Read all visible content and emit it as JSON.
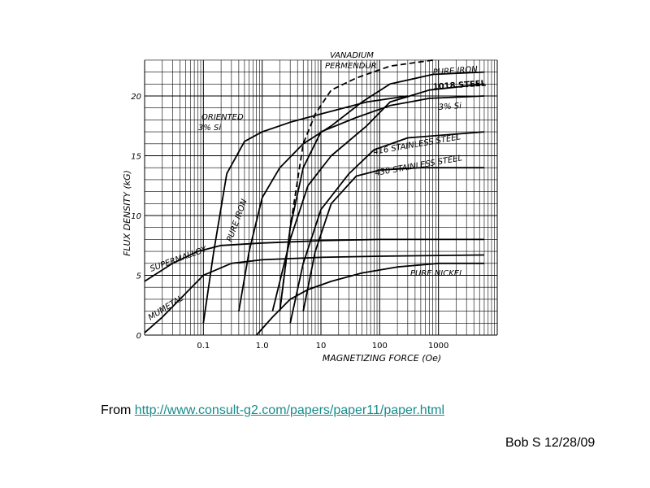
{
  "chart_data": {
    "type": "line",
    "title": "",
    "xlabel": "MAGNETIZING FORCE (Oe)",
    "ylabel": "FLUX DENSITY (kG)",
    "x_scale": "log",
    "xlim": [
      0.01,
      10000
    ],
    "ylim": [
      0,
      22
    ],
    "x_tick_labels": [
      "0.1",
      "1.0",
      "10",
      "100",
      "1000"
    ],
    "x_ticks": [
      0.1,
      1,
      10,
      100,
      1000
    ],
    "y_tick_labels": [
      "0",
      "5",
      "10",
      "15",
      "20"
    ],
    "y_ticks": [
      0,
      5,
      10,
      15,
      20
    ],
    "grid": true,
    "series": [
      {
        "name": "VANADIUM PERMENDUR",
        "dash": true,
        "x": [
          2.0,
          3.0,
          5.0,
          8.0,
          15.0,
          40.0,
          150.0,
          800.0
        ],
        "y": [
          2.0,
          9.0,
          16.0,
          18.5,
          20.5,
          21.5,
          22.5,
          23.0
        ]
      },
      {
        "name": "PURE IRON",
        "x": [
          0.4,
          0.6,
          1.0,
          2.0,
          5.0,
          15.0,
          50.0,
          150.0,
          800.0,
          6000.0
        ],
        "y": [
          2.0,
          7.0,
          11.5,
          14.0,
          16.0,
          17.5,
          19.5,
          21.0,
          21.8,
          22.0
        ]
      },
      {
        "name": "1018 STEEL",
        "x": [
          1.5,
          3.0,
          6.0,
          15.0,
          60.0,
          150.0,
          700.0,
          6000.0
        ],
        "y": [
          2.0,
          8.0,
          12.5,
          15.0,
          17.5,
          19.5,
          20.5,
          21.0
        ]
      },
      {
        "name": "3% Si",
        "x": [
          2.0,
          3.0,
          5.0,
          10.0,
          40.0,
          150.0,
          700.0,
          6000.0
        ],
        "y": [
          2.0,
          9.0,
          14.0,
          17.0,
          18.2,
          19.2,
          19.8,
          20.0
        ]
      },
      {
        "name": "ORIENTED 3% Si",
        "x": [
          0.1,
          0.15,
          0.25,
          0.5,
          1.0,
          3.0,
          10.0,
          60.0,
          300.0
        ],
        "y": [
          1.0,
          7.0,
          13.5,
          16.2,
          17.0,
          17.8,
          18.5,
          19.5,
          20.0
        ]
      },
      {
        "name": "416 STAINLESS STEEL",
        "x": [
          3.0,
          5.0,
          10.0,
          30.0,
          80.0,
          300.0,
          6000.0
        ],
        "y": [
          1.0,
          6.0,
          10.5,
          13.5,
          15.5,
          16.5,
          17.0
        ]
      },
      {
        "name": "430 STAINLESS STEEL",
        "x": [
          5.0,
          8.0,
          15.0,
          40.0,
          100.0,
          500.0,
          6000.0
        ],
        "y": [
          2.0,
          7.0,
          11.0,
          13.3,
          13.8,
          14.0,
          14.0
        ]
      },
      {
        "name": "SUPERMALLOY",
        "x": [
          0.01,
          0.03,
          0.08,
          0.2,
          1.0,
          10.0,
          100.0,
          6000.0
        ],
        "y": [
          4.5,
          6.0,
          7.0,
          7.5,
          7.7,
          7.9,
          8.0,
          8.0
        ]
      },
      {
        "name": "MUMETAL",
        "x": [
          0.01,
          0.02,
          0.05,
          0.1,
          0.3,
          1.0,
          10.0,
          100.0,
          6000.0
        ],
        "y": [
          0.2,
          1.5,
          3.5,
          5.0,
          6.0,
          6.3,
          6.5,
          6.6,
          6.7
        ]
      },
      {
        "name": "PURE NICKEL",
        "x": [
          0.8,
          1.5,
          3.0,
          6.0,
          15.0,
          50.0,
          200.0,
          1000.0,
          6000.0
        ],
        "y": [
          0.0,
          1.5,
          3.0,
          3.8,
          4.5,
          5.2,
          5.7,
          6.0,
          6.0
        ]
      }
    ],
    "annotations": [
      {
        "text": "VANADIUM"
      },
      {
        "text": "PERMENDUR"
      },
      {
        "text": "PURE IRON"
      },
      {
        "text": "1018 STEEL"
      },
      {
        "text": "3% Si"
      },
      {
        "text": "ORIENTED"
      },
      {
        "text": "3% Si"
      },
      {
        "text": "416 STAINLESS STEEL"
      },
      {
        "text": "430 STAINLESS STEEL"
      },
      {
        "text": "SUPERMALLOY"
      },
      {
        "text": "PURE IRON"
      },
      {
        "text": "MUMETAL"
      },
      {
        "text": "PURE NICKEL"
      }
    ]
  },
  "source": {
    "prefix": "From ",
    "link": "http://www.consult-g2.com/papers/paper11/paper.html"
  },
  "signature": "Bob S 12/28/09"
}
